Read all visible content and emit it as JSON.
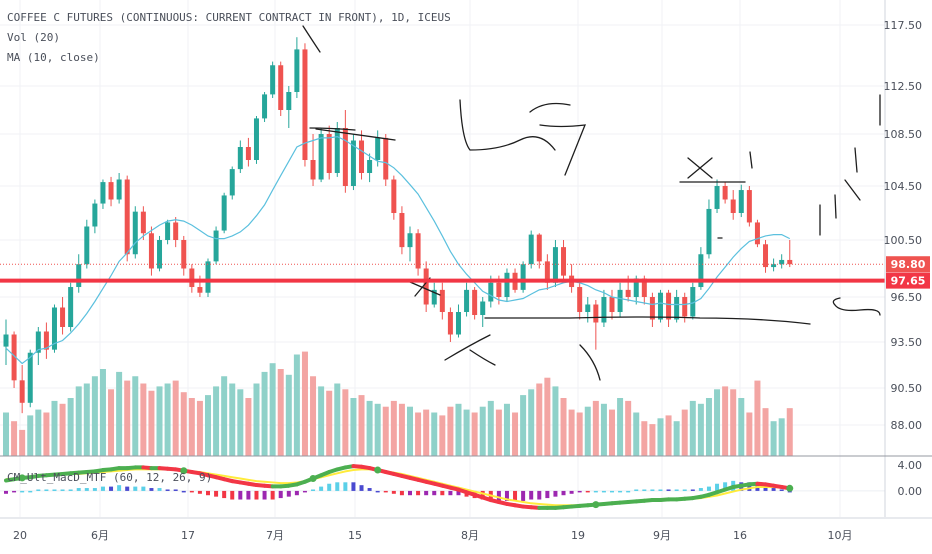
{
  "legend": {
    "symbol": "COFFEE C FUTURES (CONTINUOUS: CURRENT CONTRACT IN FRONT), 1D, ICEUS",
    "volume": "Vol (20)",
    "ma": "MA (10, close)"
  },
  "macd_label": "CM_Ult_MacD_MTF (60, 12, 26, 9)",
  "colors": {
    "up": "#26a69a",
    "down": "#ef5350",
    "ma": "#5bc0de",
    "support": "#f23645",
    "price_tag": "#ef5350",
    "macd_up": "#4caf50",
    "macd_down": "#f23645",
    "signal": "#ffeb3b"
  },
  "chart_data": [
    {
      "type": "candlestick",
      "title": "COFFEE C FUTURES (CONTINUOUS: CURRENT CONTRACT IN FRONT), 1D, ICEUS",
      "x_tick_labels": [
        "20",
        "6月",
        "17",
        "7月",
        "15",
        "8月",
        "19",
        "9月",
        "16",
        "10月"
      ],
      "y_tick_labels": [
        "117.50",
        "112.50",
        "108.50",
        "104.50",
        "100.50",
        "96.50",
        "93.50",
        "90.50",
        "88.00"
      ],
      "ylim": [
        86.0,
        119.5
      ],
      "candles": [
        [
          93.2,
          95.0,
          92.0,
          94.0
        ],
        [
          94.0,
          94.2,
          90.5,
          91.0
        ],
        [
          91.0,
          92.0,
          88.8,
          89.5
        ],
        [
          89.5,
          93.0,
          89.2,
          92.8
        ],
        [
          92.8,
          94.5,
          92.0,
          94.2
        ],
        [
          94.2,
          94.8,
          92.4,
          93.0
        ],
        [
          93.0,
          96.0,
          92.8,
          95.8
        ],
        [
          95.8,
          96.5,
          94.0,
          94.5
        ],
        [
          94.5,
          97.5,
          94.2,
          97.2
        ],
        [
          97.2,
          99.5,
          96.8,
          98.8
        ],
        [
          98.8,
          102.0,
          98.5,
          101.5
        ],
        [
          101.5,
          103.5,
          101.0,
          103.2
        ],
        [
          103.2,
          105.0,
          102.8,
          104.8
        ],
        [
          104.8,
          105.2,
          103.0,
          103.5
        ],
        [
          103.5,
          105.5,
          103.2,
          105.0
        ],
        [
          105.0,
          105.3,
          99.0,
          99.5
        ],
        [
          99.5,
          103.0,
          99.2,
          102.6
        ],
        [
          102.6,
          103.0,
          100.5,
          101.0
        ],
        [
          101.0,
          101.5,
          98.0,
          98.5
        ],
        [
          98.5,
          100.8,
          98.3,
          100.5
        ],
        [
          100.5,
          102.0,
          100.2,
          101.8
        ],
        [
          101.8,
          102.2,
          100.0,
          100.5
        ],
        [
          100.5,
          100.8,
          98.0,
          98.5
        ],
        [
          98.5,
          98.8,
          96.8,
          97.2
        ],
        [
          97.2,
          98.0,
          96.5,
          96.8
        ],
        [
          96.8,
          99.2,
          96.5,
          99.0
        ],
        [
          99.0,
          101.5,
          98.8,
          101.2
        ],
        [
          101.2,
          104.0,
          101.0,
          103.8
        ],
        [
          103.8,
          106.0,
          103.5,
          105.8
        ],
        [
          105.8,
          108.0,
          105.5,
          107.5
        ],
        [
          107.5,
          108.2,
          106.0,
          106.5
        ],
        [
          106.5,
          110.0,
          106.2,
          109.8
        ],
        [
          109.8,
          112.0,
          109.5,
          111.8
        ],
        [
          111.8,
          114.5,
          111.5,
          114.2
        ],
        [
          114.2,
          114.5,
          110.0,
          110.5
        ],
        [
          110.5,
          112.5,
          109.0,
          112.0
        ],
        [
          112.0,
          116.5,
          111.5,
          115.5
        ],
        [
          115.5,
          116.0,
          106.0,
          106.5
        ],
        [
          106.5,
          108.5,
          104.5,
          105.0
        ],
        [
          105.0,
          109.0,
          104.8,
          108.5
        ],
        [
          108.5,
          109.2,
          105.0,
          105.5
        ],
        [
          105.5,
          109.5,
          105.2,
          109.0
        ],
        [
          109.0,
          110.5,
          104.0,
          104.5
        ],
        [
          104.5,
          108.5,
          104.2,
          108.0
        ],
        [
          108.0,
          108.8,
          105.0,
          105.5
        ],
        [
          105.5,
          107.0,
          104.8,
          106.5
        ],
        [
          106.5,
          108.8,
          106.0,
          108.2
        ],
        [
          108.2,
          108.5,
          104.5,
          105.0
        ],
        [
          105.0,
          105.3,
          102.0,
          102.5
        ],
        [
          102.5,
          103.0,
          99.5,
          100.0
        ],
        [
          100.0,
          101.5,
          99.0,
          101.0
        ],
        [
          101.0,
          101.3,
          98.0,
          98.5
        ],
        [
          98.5,
          99.0,
          95.5,
          96.0
        ],
        [
          96.0,
          97.5,
          95.8,
          97.0
        ],
        [
          97.0,
          97.5,
          95.0,
          95.5
        ],
        [
          95.5,
          95.8,
          93.5,
          94.0
        ],
        [
          94.0,
          96.0,
          93.8,
          95.5
        ],
        [
          95.5,
          97.5,
          95.2,
          97.0
        ],
        [
          97.0,
          97.2,
          95.0,
          95.3
        ],
        [
          95.3,
          96.5,
          94.5,
          96.2
        ],
        [
          96.2,
          98.0,
          95.8,
          97.5
        ],
        [
          97.5,
          98.0,
          96.0,
          96.5
        ],
        [
          96.5,
          98.5,
          96.2,
          98.2
        ],
        [
          98.2,
          98.5,
          96.8,
          97.0
        ],
        [
          97.0,
          99.0,
          96.8,
          98.8
        ],
        [
          98.8,
          101.2,
          98.5,
          100.9
        ],
        [
          100.9,
          101.0,
          98.5,
          99.0
        ],
        [
          99.0,
          99.5,
          97.0,
          97.5
        ],
        [
          97.5,
          100.5,
          97.2,
          100.0
        ],
        [
          100.0,
          100.5,
          97.5,
          98.0
        ],
        [
          98.0,
          98.8,
          96.8,
          97.2
        ],
        [
          97.2,
          97.5,
          95.0,
          95.5
        ],
        [
          95.5,
          96.5,
          94.8,
          96.0
        ],
        [
          96.0,
          96.3,
          93.0,
          94.8
        ],
        [
          94.8,
          97.0,
          94.5,
          96.5
        ],
        [
          96.5,
          97.0,
          95.0,
          95.5
        ],
        [
          95.5,
          97.5,
          95.2,
          97.0
        ],
        [
          97.0,
          98.0,
          96.2,
          96.5
        ],
        [
          96.5,
          98.0,
          96.0,
          97.8
        ],
        [
          97.8,
          98.0,
          96.0,
          96.5
        ],
        [
          96.5,
          96.8,
          94.5,
          95.0
        ],
        [
          95.0,
          97.0,
          94.8,
          96.8
        ],
        [
          96.8,
          97.0,
          94.5,
          95.0
        ],
        [
          95.0,
          97.0,
          94.8,
          96.5
        ],
        [
          96.5,
          96.8,
          94.8,
          95.2
        ],
        [
          95.2,
          97.5,
          95.0,
          97.2
        ],
        [
          97.2,
          100.0,
          97.0,
          99.5
        ],
        [
          99.5,
          103.5,
          99.2,
          102.8
        ],
        [
          102.8,
          105.0,
          102.5,
          104.5
        ],
        [
          104.5,
          104.8,
          103.2,
          103.5
        ],
        [
          103.5,
          104.2,
          102.0,
          102.5
        ],
        [
          102.5,
          104.6,
          102.2,
          104.2
        ],
        [
          104.2,
          104.5,
          101.5,
          101.8
        ],
        [
          101.8,
          102.0,
          100.0,
          100.2
        ],
        [
          100.2,
          100.5,
          98.2,
          98.6
        ],
        [
          98.6,
          99.2,
          98.3,
          98.8
        ],
        [
          98.8,
          99.5,
          98.5,
          99.1
        ],
        [
          99.1,
          100.5,
          98.6,
          98.8
        ]
      ],
      "ma_10": [
        93.1,
        92.6,
        92.1,
        92.5,
        93.0,
        93.1,
        93.4,
        93.6,
        94.1,
        94.7,
        95.4,
        96.2,
        97.1,
        98.0,
        99.0,
        99.6,
        100.3,
        100.8,
        101.2,
        101.6,
        101.9,
        102.0,
        101.9,
        101.6,
        101.2,
        100.8,
        100.6,
        100.6,
        100.8,
        101.1,
        101.6,
        102.3,
        103.1,
        104.2,
        105.3,
        106.4,
        107.5,
        107.8,
        108.0,
        108.2,
        108.2,
        108.3,
        108.0,
        107.6,
        107.2,
        106.8,
        106.4,
        106.3,
        105.9,
        105.3,
        104.6,
        103.9,
        102.9,
        101.9,
        100.8,
        99.7,
        98.8,
        98.1,
        97.5,
        96.9,
        96.6,
        96.3,
        96.2,
        96.3,
        96.4,
        96.7,
        97.0,
        97.1,
        97.3,
        97.5,
        97.6,
        97.5,
        97.3,
        97.0,
        96.8,
        96.5,
        96.4,
        96.3,
        96.2,
        96.1,
        96.0,
        96.1,
        96.0,
        96.0,
        96.0,
        96.1,
        96.4,
        97.1,
        97.9,
        98.6,
        99.3,
        99.9,
        100.4,
        100.6,
        100.8,
        100.9,
        100.9,
        100.6
      ],
      "volume": [
        0.3,
        0.24,
        0.18,
        0.28,
        0.32,
        0.3,
        0.38,
        0.36,
        0.4,
        0.48,
        0.5,
        0.55,
        0.6,
        0.46,
        0.58,
        0.52,
        0.55,
        0.5,
        0.45,
        0.48,
        0.5,
        0.52,
        0.44,
        0.4,
        0.38,
        0.42,
        0.48,
        0.55,
        0.5,
        0.46,
        0.4,
        0.5,
        0.58,
        0.64,
        0.6,
        0.56,
        0.7,
        0.72,
        0.55,
        0.48,
        0.45,
        0.5,
        0.46,
        0.4,
        0.42,
        0.38,
        0.36,
        0.34,
        0.38,
        0.36,
        0.34,
        0.3,
        0.32,
        0.3,
        0.28,
        0.34,
        0.36,
        0.32,
        0.3,
        0.34,
        0.38,
        0.32,
        0.36,
        0.3,
        0.42,
        0.46,
        0.5,
        0.54,
        0.48,
        0.4,
        0.32,
        0.3,
        0.34,
        0.38,
        0.36,
        0.32,
        0.4,
        0.38,
        0.3,
        0.24,
        0.22,
        0.26,
        0.28,
        0.24,
        0.32,
        0.38,
        0.36,
        0.4,
        0.46,
        0.48,
        0.46,
        0.4,
        0.3,
        0.52,
        0.33,
        0.24,
        0.26,
        0.33
      ]
    },
    {
      "type": "line",
      "title": "CM_Ult_MacD_MTF (60, 12, 26, 9)",
      "y_tick_labels": [
        "4.00",
        "0.00"
      ],
      "ylim": [
        -4.0,
        5.2
      ],
      "series": [
        {
          "values": [
            1.6,
            1.8,
            2.0,
            2.1,
            2.3,
            2.4,
            2.5,
            2.6,
            2.7,
            2.8,
            2.9,
            3.0,
            3.2,
            3.3,
            3.5,
            3.5,
            3.6,
            3.6,
            3.5,
            3.5,
            3.4,
            3.3,
            3.1,
            2.9,
            2.7,
            2.4,
            2.1,
            1.8,
            1.5,
            1.3,
            1.1,
            0.9,
            0.8,
            0.7,
            0.7,
            0.8,
            1.0,
            1.4,
            1.9,
            2.4,
            2.9,
            3.3,
            3.6,
            3.8,
            3.7,
            3.5,
            3.2,
            2.9,
            2.6,
            2.3,
            2.0,
            1.7,
            1.4,
            1.1,
            0.8,
            0.5,
            0.2,
            -0.2,
            -0.6,
            -1.0,
            -1.4,
            -1.7,
            -2.0,
            -2.2,
            -2.4,
            -2.5,
            -2.6,
            -2.6,
            -2.6,
            -2.5,
            -2.4,
            -2.3,
            -2.2,
            -2.1,
            -2.0,
            -1.9,
            -1.8,
            -1.7,
            -1.6,
            -1.5,
            -1.4,
            -1.4,
            -1.3,
            -1.3,
            -1.2,
            -1.1,
            -0.9,
            -0.6,
            -0.2,
            0.2,
            0.6,
            0.8,
            1.0,
            1.1,
            1.0,
            0.8,
            0.6,
            0.4
          ]
        },
        {
          "values": [
            1.8,
            1.9,
            2.0,
            2.1,
            2.2,
            2.3,
            2.4,
            2.5,
            2.6,
            2.6,
            2.7,
            2.8,
            2.9,
            3.0,
            3.1,
            3.2,
            3.3,
            3.3,
            3.3,
            3.3,
            3.3,
            3.2,
            3.1,
            3.0,
            2.9,
            2.7,
            2.5,
            2.3,
            2.1,
            1.9,
            1.7,
            1.5,
            1.4,
            1.3,
            1.2,
            1.2,
            1.3,
            1.5,
            1.8,
            2.1,
            2.4,
            2.7,
            3.0,
            3.2,
            3.3,
            3.3,
            3.2,
            3.0,
            2.8,
            2.6,
            2.3,
            2.0,
            1.7,
            1.4,
            1.1,
            0.8,
            0.5,
            0.2,
            -0.1,
            -0.4,
            -0.7,
            -1.0,
            -1.3,
            -1.5,
            -1.7,
            -1.9,
            -2.0,
            -2.1,
            -2.2,
            -2.2,
            -2.2,
            -2.2,
            -2.1,
            -2.1,
            -2.0,
            -1.9,
            -1.8,
            -1.7,
            -1.7,
            -1.6,
            -1.5,
            -1.5,
            -1.4,
            -1.4,
            -1.3,
            -1.2,
            -1.1,
            -0.9,
            -0.7,
            -0.4,
            -0.1,
            0.2,
            0.4,
            0.6,
            0.6,
            0.6,
            0.5,
            0.4
          ]
        }
      ]
    }
  ],
  "price_tags": {
    "last": "98.80",
    "support": "97.65"
  },
  "support_level": 97.65,
  "last_price": 98.8
}
